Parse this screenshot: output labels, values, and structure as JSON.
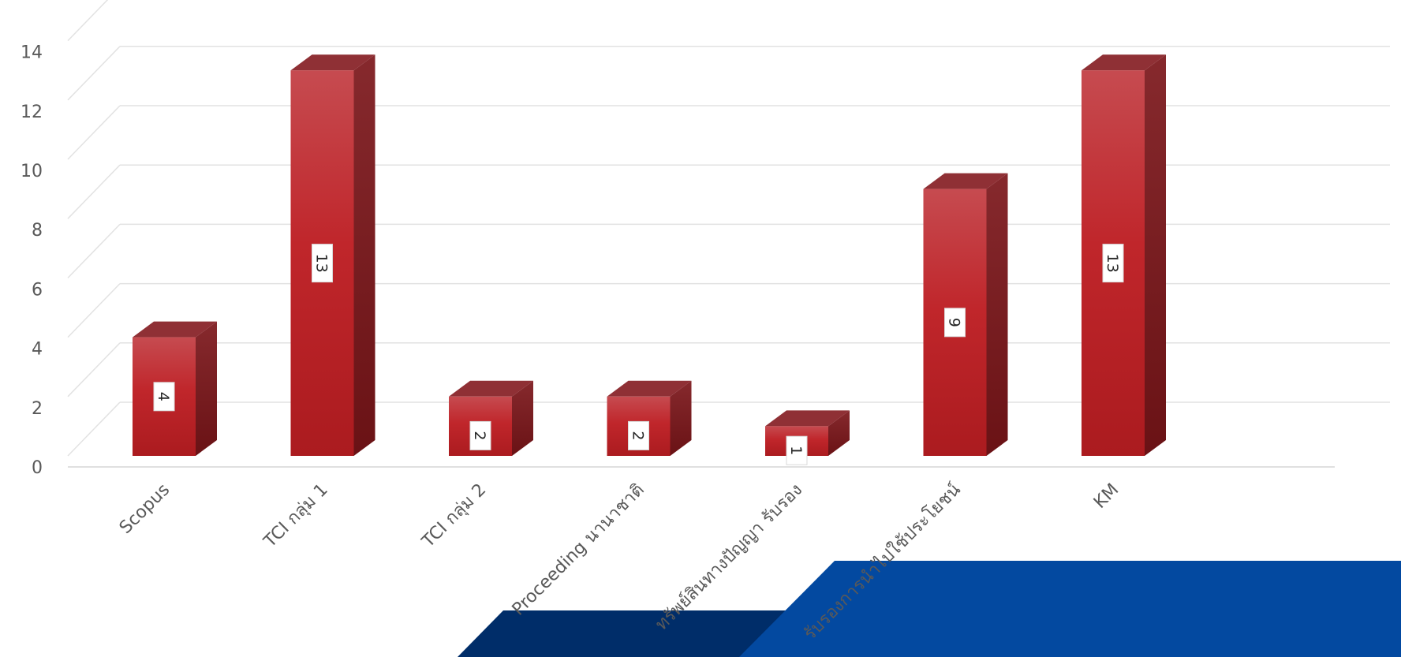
{
  "chart_data": {
    "type": "bar",
    "style": "3d-column",
    "categories": [
      "Scopus",
      "TCI กลุ่ม 1",
      "TCI กลุ่ม 2",
      "Proceeding นานาชาติ",
      "ทรัพย์สินทางปัญญา รับรอง",
      "รับรองการนำไปใช้ประโยชน์",
      "KM"
    ],
    "values": [
      4,
      13,
      2,
      2,
      1,
      9,
      13
    ],
    "y_ticks": [
      "0",
      "2",
      "4",
      "6",
      "8",
      "10",
      "12",
      "14"
    ],
    "ylim": [
      0,
      14
    ],
    "title": "",
    "xlabel": "",
    "ylabel": "",
    "grid": true,
    "data_labels": true,
    "bar_color": "#c0262b",
    "bar_side_color": "#7a1518",
    "bar_top_color": "#8f3035"
  },
  "decor": {
    "dark_band_color": "#002d69",
    "blue_band_color": "#0349a0"
  }
}
